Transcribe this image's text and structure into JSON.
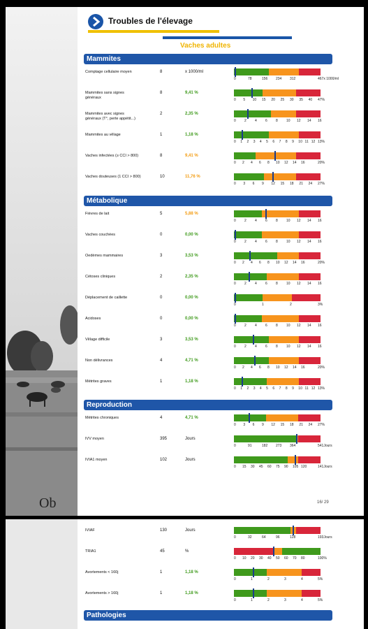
{
  "header": {
    "title": "Troubles de l'élevage",
    "subtitle": "Vaches adultes"
  },
  "logo_text": "Ob",
  "page_number": "16/ 29",
  "colors": {
    "green": "#3f9a1c",
    "orange": "#f7941d",
    "red": "#d8263a",
    "blue": "#1f56a8",
    "yellow": "#f0c000"
  },
  "sections": [
    {
      "title": "Mammites",
      "rows": [
        {
          "label": "Comptage cellulaire moyen",
          "count": "8",
          "value": "x 1000/ml",
          "val_class": "",
          "zones": [
            0.4,
            0.75,
            1
          ],
          "marker": 0.01,
          "ticks": [
            "0",
            "78",
            "156",
            "234",
            "312",
            "",
            "467x 1000/ml"
          ]
        },
        {
          "label": "Mammites sans signes généraux",
          "count": "8",
          "value": "9,41 %",
          "val_class": "green",
          "zones": [
            0.33,
            0.72,
            1
          ],
          "marker": 0.2,
          "ticks": [
            "0",
            "5",
            "10",
            "15",
            "20",
            "25",
            "30",
            "35",
            "40",
            "47%"
          ]
        },
        {
          "label": "Mammites avec signes généraux (T°, perte appétit...)",
          "count": "2",
          "value": "2,35 %",
          "val_class": "green",
          "zones": [
            0.43,
            0.72,
            1
          ],
          "marker": 0.15,
          "ticks": [
            "0",
            "2",
            "4",
            "6",
            "8",
            "10",
            "12",
            "14",
            "16"
          ]
        },
        {
          "label": "Mammites au vêlage",
          "count": "1",
          "value": "1,18 %",
          "val_class": "green",
          "zones": [
            0.4,
            0.75,
            1
          ],
          "marker": 0.09,
          "ticks": [
            "0",
            "1",
            "2",
            "3",
            "4",
            "5",
            "6",
            "7",
            "8",
            "9",
            "10",
            "11",
            "12",
            "13%"
          ]
        },
        {
          "label": "Vaches infectées (≥ CCI > 800)",
          "count": "8",
          "value": "9,41 %",
          "val_class": "orange",
          "zones": [
            0.25,
            0.72,
            1
          ],
          "marker": 0.47,
          "ticks": [
            "0",
            "2",
            "4",
            "6",
            "8",
            "10",
            "12",
            "14",
            "16",
            "",
            "20%"
          ]
        },
        {
          "label": "Vaches douteuses (1 CCI > 800)",
          "count": "10",
          "value": "11,76 %",
          "val_class": "orange",
          "zones": [
            0.35,
            0.72,
            1
          ],
          "marker": 0.44,
          "ticks": [
            "0",
            "3",
            "6",
            "9",
            "12",
            "15",
            "18",
            "21",
            "24",
            "27%"
          ]
        }
      ]
    },
    {
      "title": "Métabolique",
      "rows": [
        {
          "label": "Fièvres de lait",
          "count": "5",
          "value": "5,88 %",
          "val_class": "orange",
          "zones": [
            0.32,
            0.75,
            1
          ],
          "marker": 0.36,
          "ticks": [
            "0",
            "2",
            "4",
            "6",
            "8",
            "10",
            "12",
            "14",
            "16"
          ]
        },
        {
          "label": "Vaches couchées",
          "count": "0",
          "value": "0,00 %",
          "val_class": "green",
          "zones": [
            0.32,
            0.75,
            1
          ],
          "marker": 0.005,
          "ticks": [
            "0",
            "2",
            "4",
            "6",
            "8",
            "10",
            "12",
            "14",
            "16"
          ]
        },
        {
          "label": "Oedèmes mammaires",
          "count": "3",
          "value": "3,53 %",
          "val_class": "green",
          "zones": [
            0.5,
            0.75,
            1
          ],
          "marker": 0.18,
          "ticks": [
            "0",
            "2",
            "4",
            "6",
            "8",
            "10",
            "12",
            "14",
            "16",
            "",
            "20%"
          ]
        },
        {
          "label": "Cétoses cliniques",
          "count": "2",
          "value": "2,35 %",
          "val_class": "green",
          "zones": [
            0.38,
            0.75,
            1
          ],
          "marker": 0.17,
          "ticks": [
            "0",
            "2",
            "4",
            "6",
            "8",
            "10",
            "12",
            "14",
            "16"
          ]
        },
        {
          "label": "Déplacement de caillette",
          "count": "0",
          "value": "0,00 %",
          "val_class": "green",
          "zones": [
            0.33,
            0.67,
            1
          ],
          "marker": 0.005,
          "ticks": [
            "0",
            "",
            "",
            "1",
            "",
            "",
            "2",
            "",
            "",
            "3%"
          ]
        },
        {
          "label": "Acidoses",
          "count": "0",
          "value": "0,00 %",
          "val_class": "green",
          "zones": [
            0.32,
            0.75,
            1
          ],
          "marker": 0.005,
          "ticks": [
            "0",
            "2",
            "4",
            "6",
            "8",
            "10",
            "12",
            "14",
            "16"
          ]
        },
        {
          "label": "Vêlage difficile",
          "count": "3",
          "value": "3,53 %",
          "val_class": "green",
          "zones": [
            0.4,
            0.75,
            1
          ],
          "marker": 0.22,
          "ticks": [
            "0",
            "2",
            "4",
            "6",
            "8",
            "10",
            "12",
            "14",
            "16"
          ]
        },
        {
          "label": "Non délivrances",
          "count": "4",
          "value": "4,71 %",
          "val_class": "green",
          "zones": [
            0.4,
            0.75,
            1
          ],
          "marker": 0.23,
          "ticks": [
            "0",
            "2",
            "4",
            "6",
            "8",
            "10",
            "12",
            "14",
            "16",
            "",
            "20%"
          ]
        },
        {
          "label": "Métrites graves",
          "count": "1",
          "value": "1,18 %",
          "val_class": "green",
          "zones": [
            0.38,
            0.75,
            1
          ],
          "marker": 0.09,
          "ticks": [
            "0",
            "1",
            "2",
            "3",
            "4",
            "5",
            "6",
            "7",
            "8",
            "9",
            "10",
            "11",
            "12",
            "13%"
          ]
        }
      ]
    },
    {
      "title": "Reproduction",
      "rows": [
        {
          "label": "Métrites chroniques",
          "count": "4",
          "value": "4,71 %",
          "val_class": "green",
          "zones": [
            0.37,
            0.74,
            1
          ],
          "marker": 0.17,
          "ticks": [
            "0",
            "3",
            "6",
            "9",
            "12",
            "15",
            "18",
            "21",
            "24",
            "27%"
          ]
        },
        {
          "label": "IVV moyen",
          "count": "395",
          "value": "Jours",
          "val_class": "",
          "zones": [
            0.72,
            0.74,
            1
          ],
          "marker": 0.72,
          "ticks": [
            "0",
            "91",
            "182",
            "273",
            "364",
            "",
            "541Jours"
          ]
        },
        {
          "label": "IVIA1 moyen",
          "count": "102",
          "value": "Jours",
          "val_class": "",
          "zones": [
            0.62,
            0.74,
            1
          ],
          "marker": 0.7,
          "ticks": [
            "0",
            "15",
            "30",
            "45",
            "60",
            "75",
            "90",
            "105",
            "120",
            "",
            "141Jours"
          ]
        }
      ]
    }
  ],
  "page2": {
    "rows": [
      {
        "label": "IVIAF",
        "count": "130",
        "value": "Jours",
        "val_class": "",
        "zones": [
          0.65,
          0.72,
          1
        ],
        "marker": 0.68,
        "ticks": [
          "0",
          "32",
          "64",
          "96",
          "128",
          "",
          "193Jours"
        ]
      },
      {
        "label": "TRIA1",
        "count": "45",
        "value": "%",
        "val_class": "",
        "zones": [
          0.46,
          0.56,
          1
        ],
        "marker": 0.45,
        "zone_colors": [
          "red",
          "orange",
          "green"
        ],
        "ticks": [
          "0",
          "10",
          "20",
          "30",
          "40",
          "50",
          "60",
          "70",
          "80",
          "",
          "100%"
        ]
      },
      {
        "label": "Avortements < 160j",
        "count": "1",
        "value": "1,18 %",
        "val_class": "green",
        "zones": [
          0.38,
          0.78,
          1
        ],
        "marker": 0.22,
        "ticks": [
          "0",
          "",
          "1",
          "",
          "2",
          "",
          "3",
          "",
          "4",
          "",
          "5%"
        ]
      },
      {
        "label": "Avortements > 160j",
        "count": "1",
        "value": "1,18 %",
        "val_class": "green",
        "zones": [
          0.38,
          0.78,
          1
        ],
        "marker": 0.22,
        "ticks": [
          "0",
          "",
          "1",
          "",
          "2",
          "",
          "3",
          "",
          "4",
          "",
          "5%"
        ]
      }
    ],
    "section": "Pathologies"
  }
}
